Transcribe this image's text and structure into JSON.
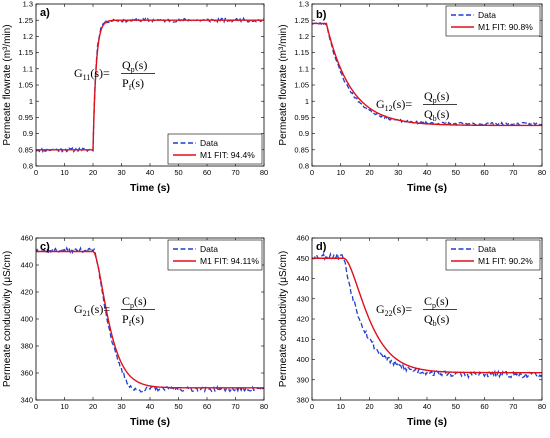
{
  "chart_data": [
    {
      "type": "line",
      "panel_label": "a)",
      "xlabel": "Time (s)",
      "ylabel": "Permeate flowrate (m³/min)",
      "xlim": [
        0,
        80
      ],
      "ylim": [
        0.8,
        1.3
      ],
      "xticks": [
        0,
        10,
        20,
        30,
        40,
        50,
        60,
        70,
        80
      ],
      "yticks": [
        0.8,
        0.85,
        0.9,
        0.95,
        1,
        1.05,
        1.1,
        1.15,
        1.2,
        1.25,
        1.3
      ],
      "ytick_labels": [
        "0.8",
        "0.85",
        "0.9",
        "0.95",
        "1",
        "1.05",
        "1.1",
        "1.15",
        "1.2",
        "1.25",
        "1.3"
      ],
      "transfer_function": {
        "g": "G",
        "g_sub": "11",
        "arg": "(s)=",
        "num": "Q",
        "num_sub": "p",
        "num_arg": "(s)",
        "den": "P",
        "den_sub": "f",
        "den_arg": "(s)"
      },
      "legend": {
        "location": "lower-right",
        "entries": [
          "Data",
          "M1 FIT: 94.4%"
        ]
      },
      "series": [
        {
          "name": "Data",
          "color": "#1f3fd0",
          "style": "dashed",
          "model": "step",
          "start": 0.85,
          "end": 1.25,
          "t0": 20,
          "tau": 1.0,
          "noise": 0.006,
          "seed": 11
        },
        {
          "name": "M1 FIT: 94.4%",
          "color": "#e0101a",
          "style": "solid",
          "model": "step",
          "start": 0.85,
          "end": 1.25,
          "t0": 20,
          "tau": 1.1,
          "noise": 0,
          "seed": 0
        }
      ]
    },
    {
      "type": "line",
      "panel_label": "b)",
      "xlabel": "Time (s)",
      "ylabel": "Permeate flowrate (m³/min)",
      "xlim": [
        0,
        80
      ],
      "ylim": [
        0.8,
        1.3
      ],
      "xticks": [
        0,
        10,
        20,
        30,
        40,
        50,
        60,
        70,
        80
      ],
      "yticks": [
        0.8,
        0.85,
        0.9,
        0.95,
        1,
        1.05,
        1.1,
        1.15,
        1.2,
        1.25,
        1.3
      ],
      "ytick_labels": [
        "0.8",
        "0.85",
        "0.9",
        "0.95",
        "1",
        "1.05",
        "1.1",
        "1.15",
        "1.2",
        "1.25",
        "1.3"
      ],
      "transfer_function": {
        "g": "G",
        "g_sub": "12",
        "arg": "(s)=",
        "num": "Q",
        "num_sub": "p",
        "num_arg": "(s)",
        "den": "Q",
        "den_sub": "b",
        "den_arg": "(s)"
      },
      "legend": {
        "location": "top-right",
        "entries": [
          "Data",
          "M1 FIT: 90.8%"
        ]
      },
      "series": [
        {
          "name": "Data",
          "color": "#1f3fd0",
          "style": "dashed",
          "model": "exp",
          "start": 1.24,
          "end": 0.93,
          "t0": 5,
          "tau": 7.5,
          "noise": 0.004,
          "seed": 23
        },
        {
          "name": "M1 FIT: 90.8%",
          "color": "#e0101a",
          "style": "solid",
          "model": "exp",
          "start": 1.24,
          "end": 0.925,
          "t0": 5,
          "tau": 8.5,
          "noise": 0,
          "seed": 0
        }
      ]
    },
    {
      "type": "line",
      "panel_label": "c)",
      "xlabel": "Time (s)",
      "ylabel": "Permeate conductivity (μS/cm)",
      "xlim": [
        0,
        80
      ],
      "ylim": [
        340,
        460
      ],
      "xticks": [
        0,
        10,
        20,
        30,
        40,
        50,
        60,
        70,
        80
      ],
      "yticks": [
        340,
        360,
        380,
        400,
        420,
        440,
        460
      ],
      "ytick_labels": [
        "340",
        "360",
        "380",
        "400",
        "420",
        "440",
        "460"
      ],
      "transfer_function": {
        "g": "G",
        "g_sub": "21",
        "arg": "(s)=",
        "num": "C",
        "num_sub": "p",
        "num_arg": "(s)",
        "den": "P",
        "den_sub": "f",
        "den_arg": "(s)"
      },
      "legend": {
        "location": "top-right",
        "entries": [
          "Data",
          "M1 FIT: 94.11%"
        ]
      },
      "series": [
        {
          "name": "Data",
          "color": "#1f3fd0",
          "style": "dashed",
          "model": "sigmoid_dip",
          "start": 451,
          "end": 348,
          "t0": 20,
          "tau": 3.0,
          "noise": 1.6,
          "seed": 37
        },
        {
          "name": "M1 FIT: 94.11%",
          "color": "#e0101a",
          "style": "solid",
          "model": "sigmoid",
          "start": 450,
          "end": 349,
          "t0": 20,
          "tau": 3.2,
          "noise": 0,
          "seed": 0
        }
      ]
    },
    {
      "type": "line",
      "panel_label": "d)",
      "xlabel": "Time (s)",
      "ylabel": "Permeate conductivity (μS/cm)",
      "xlim": [
        0,
        80
      ],
      "ylim": [
        380,
        460
      ],
      "xticks": [
        0,
        10,
        20,
        30,
        40,
        50,
        60,
        70,
        80
      ],
      "yticks": [
        380,
        390,
        400,
        410,
        420,
        430,
        440,
        450,
        460
      ],
      "ytick_labels": [
        "380",
        "390",
        "400",
        "410",
        "420",
        "430",
        "440",
        "450",
        "460"
      ],
      "transfer_function": {
        "g": "G",
        "g_sub": "22",
        "arg": "(s)=",
        "num": "C",
        "num_sub": "p",
        "num_arg": "(s)",
        "den": "Q",
        "den_sub": "b",
        "den_arg": "(s)"
      },
      "legend": {
        "location": "top-right",
        "entries": [
          "Data",
          "M1 FIT: 90.2%"
        ]
      },
      "series": [
        {
          "name": "Data",
          "color": "#1f3fd0",
          "style": "dashed",
          "model": "exp",
          "start": 451,
          "end": 392.5,
          "t0": 11,
          "tau": 7.5,
          "noise": 1.5,
          "seed": 53
        },
        {
          "name": "M1 FIT: 90.2%",
          "color": "#e0101a",
          "style": "solid",
          "model": "sigmoid",
          "start": 450,
          "end": 393.5,
          "t0": 11,
          "tau": 5.0,
          "noise": 0,
          "seed": 0
        }
      ]
    }
  ]
}
